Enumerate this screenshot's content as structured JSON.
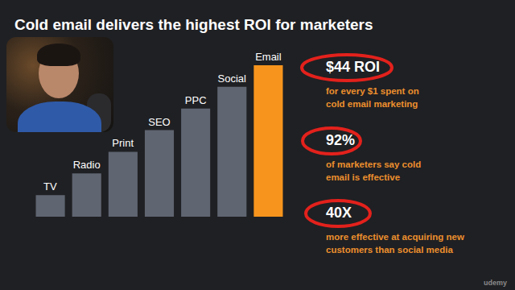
{
  "chart_data": {
    "type": "bar",
    "title": "Cold email delivers the highest ROI for marketers",
    "categories": [
      "TV",
      "Radio",
      "Print",
      "SEO",
      "PPC",
      "Social",
      "Email"
    ],
    "values": [
      1,
      2,
      3,
      4,
      5,
      6,
      7
    ],
    "colors": [
      "#5f6571",
      "#5f6571",
      "#5f6571",
      "#5f6571",
      "#5f6571",
      "#5f6571",
      "#f7941d"
    ],
    "ylim": [
      0,
      7
    ],
    "grid": false,
    "tick_labels": false,
    "data_labels": false,
    "annotations": [
      {
        "text": "$44 ROI",
        "note": [
          "for every $1 spent on",
          "cold email marketing"
        ]
      },
      {
        "text": "92%",
        "note": [
          "of marketers say cold",
          "email is effective"
        ]
      },
      {
        "text": "40X",
        "note": [
          "more effective at acquiring new",
          "customers than social media"
        ]
      }
    ]
  },
  "watermark": "udemy"
}
